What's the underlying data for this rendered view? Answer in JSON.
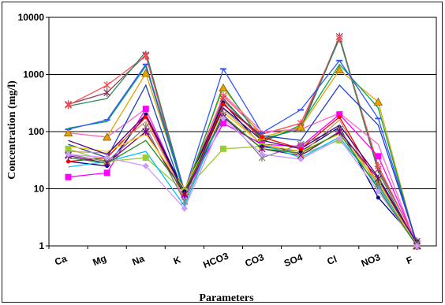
{
  "chart_data": {
    "type": "line",
    "title": "",
    "xlabel": "Parameters",
    "ylabel": "Concentration (mg/l)",
    "yscale": "log",
    "ylim": [
      1,
      10000
    ],
    "yticks": [
      "1",
      "10",
      "100",
      "1000",
      "10000"
    ],
    "categories": [
      "Ca",
      "Mg",
      "Na",
      "K",
      "HCO3",
      "CO3",
      "SO4",
      "Cl",
      "NO3",
      "F"
    ],
    "grid": "horizontal",
    "legend": "none",
    "series": [
      {
        "color": "#8b3a62",
        "marker": "star",
        "values": [
          300,
          480,
          2200,
          8,
          380,
          70,
          120,
          4600,
          22,
          1.2
        ]
      },
      {
        "color": "#ff4d4d",
        "marker": "star",
        "values": [
          290,
          650,
          2100,
          9,
          420,
          90,
          140,
          4200,
          25,
          1.1
        ]
      },
      {
        "color": "#2e8b57",
        "marker": "none",
        "values": [
          280,
          380,
          2500,
          9,
          350,
          75,
          110,
          4300,
          20,
          1.0
        ]
      },
      {
        "color": "#e8a200",
        "marker": "triangle",
        "values": [
          95,
          80,
          1050,
          9,
          580,
          80,
          120,
          1200,
          330,
          1.0
        ]
      },
      {
        "color": "#00a651",
        "marker": "none",
        "values": [
          115,
          150,
          1400,
          8,
          650,
          65,
          130,
          1500,
          260,
          1.0
        ]
      },
      {
        "color": "#3355ff",
        "marker": "dash",
        "values": [
          110,
          160,
          1500,
          9,
          1250,
          95,
          240,
          1750,
          170,
          1.1
        ]
      },
      {
        "color": "#ff00ff",
        "marker": "square",
        "values": [
          16,
          19,
          250,
          8,
          140,
          60,
          55,
          200,
          37,
          1.1
        ]
      },
      {
        "color": "#ff66cc",
        "marker": "none",
        "values": [
          95,
          80,
          250,
          6,
          450,
          100,
          110,
          210,
          60,
          1.0
        ]
      },
      {
        "color": "#1f3fbf",
        "marker": "none",
        "values": [
          60,
          35,
          650,
          7,
          300,
          85,
          70,
          650,
          130,
          1.1
        ]
      },
      {
        "color": "#9acd32",
        "marker": "square",
        "values": [
          50,
          30,
          35,
          9,
          50,
          55,
          40,
          70,
          14,
          1.0
        ]
      },
      {
        "color": "#000080",
        "marker": "circle",
        "values": [
          30,
          25,
          200,
          9,
          320,
          55,
          45,
          120,
          7,
          1.2
        ]
      },
      {
        "color": "#ff0000",
        "marker": "circle",
        "values": [
          30,
          35,
          180,
          8,
          300,
          80,
          50,
          180,
          12,
          1.0
        ]
      },
      {
        "color": "#c0a060",
        "marker": "none",
        "values": [
          45,
          42,
          150,
          8,
          250,
          60,
          40,
          160,
          10,
          1.0
        ]
      },
      {
        "color": "#808080",
        "marker": "star",
        "values": [
          40,
          30,
          120,
          6,
          200,
          35,
          60,
          110,
          12,
          1.1
        ]
      },
      {
        "color": "#800080",
        "marker": "star",
        "values": [
          38,
          28,
          100,
          8,
          180,
          50,
          38,
          100,
          15,
          0.9
        ]
      },
      {
        "color": "#00bfff",
        "marker": "none",
        "values": [
          24,
          30,
          45,
          5,
          220,
          60,
          35,
          80,
          11,
          1.1
        ]
      },
      {
        "color": "#cc99ff",
        "marker": "diamond",
        "values": [
          40,
          35,
          25,
          4.5,
          170,
          40,
          33,
          75,
          9,
          1.0
        ]
      },
      {
        "color": "#ffcc00",
        "marker": "none",
        "values": [
          55,
          45,
          90,
          10,
          220,
          60,
          45,
          90,
          13,
          1.0
        ]
      },
      {
        "color": "#4b0082",
        "marker": "none",
        "values": [
          70,
          40,
          200,
          8,
          260,
          70,
          50,
          130,
          16,
          1.1
        ]
      },
      {
        "color": "#228b22",
        "marker": "none",
        "values": [
          35,
          28,
          70,
          9,
          190,
          50,
          42,
          95,
          10,
          1.0
        ]
      }
    ]
  }
}
